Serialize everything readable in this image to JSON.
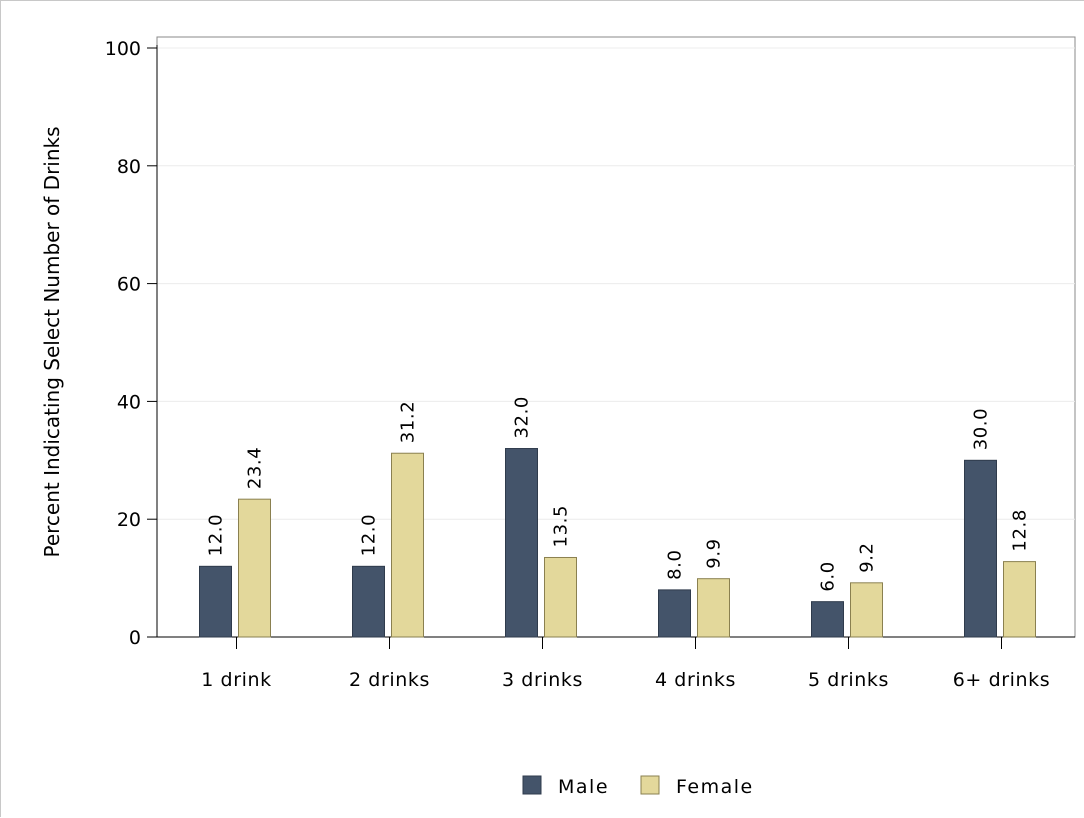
{
  "chart_data": {
    "type": "bar",
    "ylabel": "Percent Indicating Select Number of Drinks",
    "ylim": [
      0,
      100
    ],
    "yticks": [
      "0",
      "20",
      "40",
      "60",
      "80",
      "100"
    ],
    "categories": [
      "1 drink",
      "2 drinks",
      "3 drinks",
      "4 drinks",
      "5 drinks",
      "6+ drinks"
    ],
    "series": [
      {
        "name": "Male",
        "color": "#44546a",
        "values": [
          12.0,
          12.0,
          32.0,
          8.0,
          6.0,
          30.0
        ],
        "labels": [
          "12.0",
          "12.0",
          "32.0",
          "8.0",
          "6.0",
          "30.0"
        ]
      },
      {
        "name": "Female",
        "color": "#e3d89b",
        "values": [
          23.4,
          31.2,
          13.5,
          9.9,
          9.2,
          12.8
        ],
        "labels": [
          "23.4",
          "31.2",
          "13.5",
          "9.9",
          "9.2",
          "12.8"
        ]
      }
    ],
    "grid": true,
    "legend_position": "bottom"
  }
}
